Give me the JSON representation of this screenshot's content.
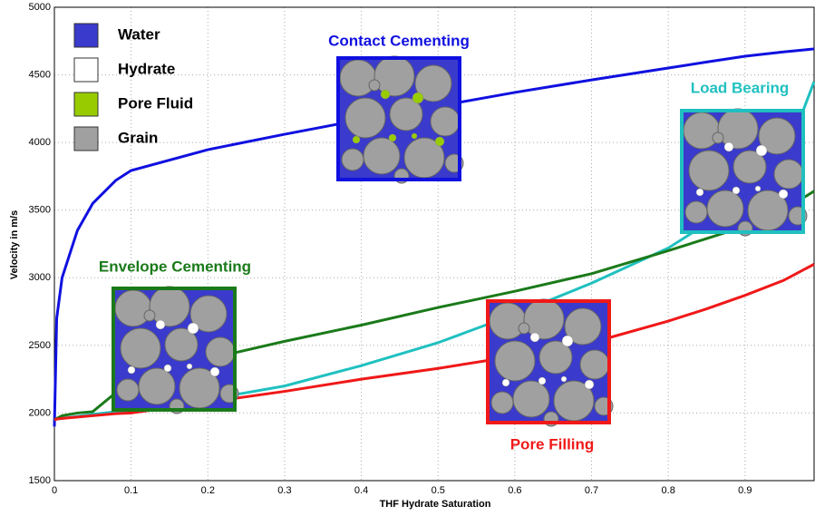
{
  "chart_data": {
    "type": "line",
    "x_label": "THF Hydrate Saturation",
    "y_label": "Velocity in m/s",
    "x": [
      0,
      0.003,
      0.01,
      0.03,
      0.05,
      0.08,
      0.1,
      0.2,
      0.3,
      0.4,
      0.5,
      0.6,
      0.7,
      0.8,
      0.85,
      0.9,
      0.95,
      0.99
    ],
    "series": [
      {
        "name": "Contact Cementing",
        "color": "#1010e0",
        "values": [
          1900,
          2700,
          3000,
          3350,
          3550,
          3720,
          3793,
          3947,
          4061,
          4169,
          4269,
          4370,
          4463,
          4551,
          4595,
          4638,
          4670,
          4692
        ]
      },
      {
        "name": "Load Bearing",
        "color": "#20c0c0",
        "values": [
          1950,
          1955,
          1960,
          1975,
          1990,
          2010,
          2020,
          2100,
          2200,
          2350,
          2520,
          2730,
          2960,
          3220,
          3400,
          3580,
          3850,
          4450
        ]
      },
      {
        "name": "Envelope Cementing",
        "color": "#1a7a1a",
        "values": [
          1950,
          1960,
          1980,
          2000,
          2010,
          2150,
          2250,
          2400,
          2530,
          2650,
          2780,
          2900,
          3030,
          3200,
          3290,
          3380,
          3500,
          3640
        ]
      },
      {
        "name": "Pore Filling",
        "color": "#f01818",
        "values": [
          1950,
          1955,
          1960,
          1970,
          1980,
          1995,
          2000,
          2080,
          2160,
          2250,
          2330,
          2420,
          2520,
          2680,
          2770,
          2870,
          2980,
          3100
        ]
      }
    ],
    "materials": [
      {
        "name": "Water",
        "color": "#3a3acc"
      },
      {
        "name": "Hydrate",
        "color": "#ffffff"
      },
      {
        "name": "Pore Fluid",
        "color": "#99cc00"
      },
      {
        "name": "Grain",
        "color": "#a0a0a0"
      }
    ],
    "xlim": [
      0,
      0.99
    ],
    "ylim": [
      1500,
      5000
    ],
    "xticks": [
      0,
      0.1,
      0.2,
      0.3,
      0.4,
      0.5,
      0.6,
      0.7,
      0.8,
      0.9
    ],
    "yticks": [
      1500,
      2000,
      2500,
      3000,
      3500,
      4000,
      4500,
      5000
    ],
    "grid": true
  }
}
